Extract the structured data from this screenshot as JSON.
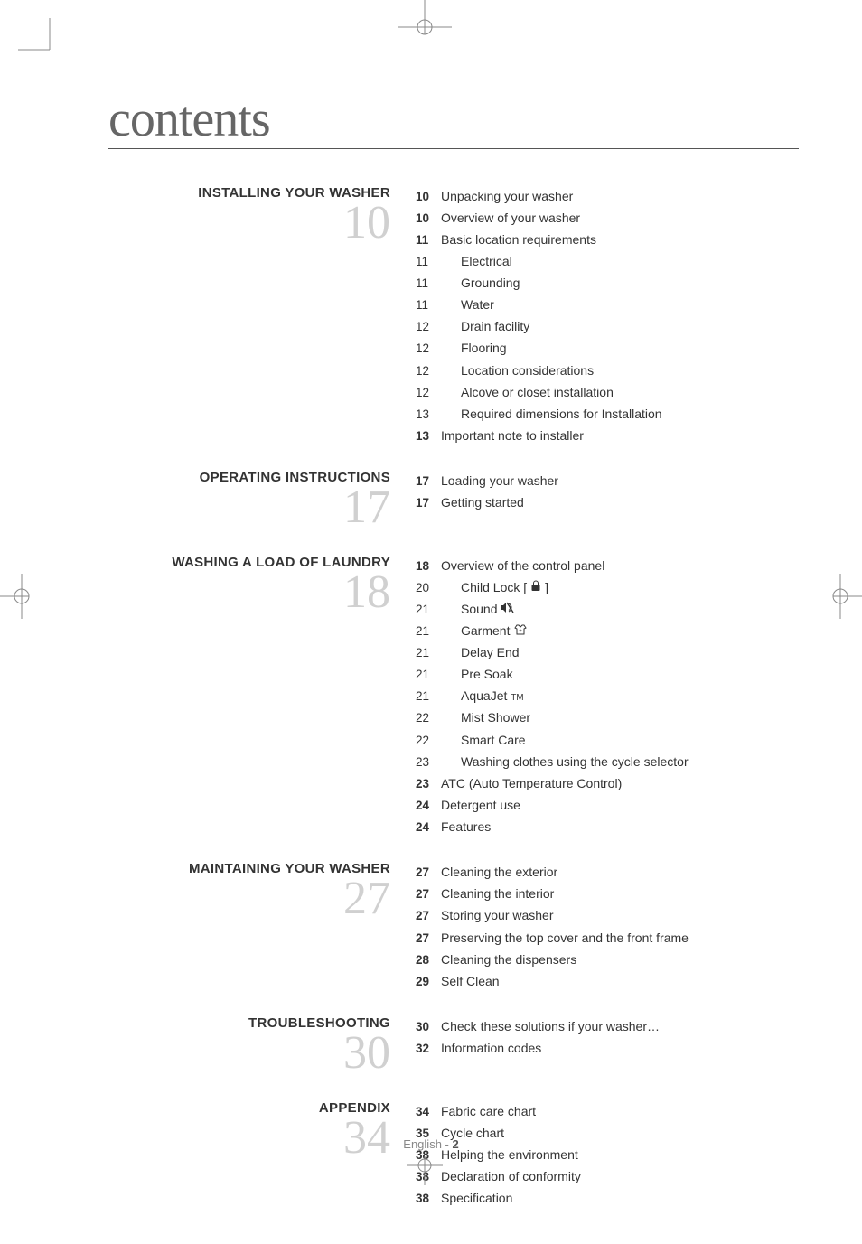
{
  "title": "contents",
  "footer": {
    "language": "English",
    "separator": " - ",
    "page": "2"
  },
  "crop_mark_color": "#888888",
  "big_number_color": "#d0d0d0",
  "icons": {
    "lock": "lock-icon",
    "sound": "sound-off-icon",
    "garment": "garment-icon"
  },
  "sections": [
    {
      "heading": "INSTALLING YOUR WASHER",
      "number": "10",
      "entries": [
        {
          "page": "10",
          "bold": true,
          "text": "Unpacking your washer",
          "indent": 0
        },
        {
          "page": "10",
          "bold": true,
          "text": "Overview of your washer",
          "indent": 0
        },
        {
          "page": "11",
          "bold": true,
          "text": "Basic location requirements",
          "indent": 0
        },
        {
          "page": "11",
          "bold": false,
          "text": "Electrical",
          "indent": 1
        },
        {
          "page": "11",
          "bold": false,
          "text": "Grounding",
          "indent": 1
        },
        {
          "page": "11",
          "bold": false,
          "text": "Water",
          "indent": 1
        },
        {
          "page": "12",
          "bold": false,
          "text": "Drain facility",
          "indent": 1
        },
        {
          "page": "12",
          "bold": false,
          "text": "Flooring",
          "indent": 1
        },
        {
          "page": "12",
          "bold": false,
          "text": "Location considerations",
          "indent": 1
        },
        {
          "page": "12",
          "bold": false,
          "text": "Alcove or closet installation",
          "indent": 1
        },
        {
          "page": "13",
          "bold": false,
          "text": "Required dimensions for Installation",
          "indent": 1
        },
        {
          "page": "13",
          "bold": true,
          "text": "Important note to installer",
          "indent": 0
        }
      ]
    },
    {
      "heading": "OPERATING INSTRUCTIONS",
      "number": "17",
      "entries": [
        {
          "page": "17",
          "bold": true,
          "text": "Loading your washer",
          "indent": 0
        },
        {
          "page": "17",
          "bold": true,
          "text": "Getting started",
          "indent": 0
        }
      ]
    },
    {
      "heading": "WASHING A LOAD OF LAUNDRY",
      "number": "18",
      "entries": [
        {
          "page": "18",
          "bold": true,
          "text": "Overview of the control panel",
          "indent": 0
        },
        {
          "page": "20",
          "bold": false,
          "text": "Child Lock [",
          "suffix": "]",
          "indent": 1,
          "icon": "lock"
        },
        {
          "page": "21",
          "bold": false,
          "text": "Sound ",
          "indent": 1,
          "icon": "sound"
        },
        {
          "page": "21",
          "bold": false,
          "text": "Garment ",
          "indent": 1,
          "icon": "garment"
        },
        {
          "page": "21",
          "bold": false,
          "text": "Delay End",
          "indent": 1
        },
        {
          "page": "21",
          "bold": false,
          "text": "Pre Soak",
          "indent": 1
        },
        {
          "page": "21",
          "bold": false,
          "text": "AquaJet",
          "indent": 1,
          "tm": true
        },
        {
          "page": "22",
          "bold": false,
          "text": "Mist Shower",
          "indent": 1
        },
        {
          "page": "22",
          "bold": false,
          "text": "Smart Care",
          "indent": 1
        },
        {
          "page": "23",
          "bold": false,
          "text": "Washing clothes using the cycle selector",
          "indent": 2
        },
        {
          "page": "23",
          "bold": true,
          "text": "ATC (Auto Temperature Control)",
          "indent": 0
        },
        {
          "page": "24",
          "bold": true,
          "text": "Detergent use",
          "indent": 0
        },
        {
          "page": "24",
          "bold": true,
          "text": "Features",
          "indent": 0
        }
      ]
    },
    {
      "heading": "MAINTAINING YOUR WASHER",
      "number": "27",
      "entries": [
        {
          "page": "27",
          "bold": true,
          "text": "Cleaning the exterior",
          "indent": 0
        },
        {
          "page": "27",
          "bold": true,
          "text": "Cleaning the interior",
          "indent": 0
        },
        {
          "page": "27",
          "bold": true,
          "text": "Storing your washer",
          "indent": 0
        },
        {
          "page": "27",
          "bold": true,
          "text": "Preserving the top cover and the front frame",
          "indent": 0
        },
        {
          "page": "28",
          "bold": true,
          "text": "Cleaning the dispensers",
          "indent": 0
        },
        {
          "page": "29",
          "bold": true,
          "text": "Self Clean",
          "indent": 0
        }
      ]
    },
    {
      "heading": "TROUBLESHOOTING",
      "number": "30",
      "entries": [
        {
          "page": "30",
          "bold": true,
          "text": "Check these solutions if your washer…",
          "indent": 0
        },
        {
          "page": "32",
          "bold": true,
          "text": "Information codes",
          "indent": 0
        }
      ]
    },
    {
      "heading": "APPENDIX",
      "number": "34",
      "entries": [
        {
          "page": "34",
          "bold": true,
          "text": "Fabric care chart",
          "indent": 0
        },
        {
          "page": "35",
          "bold": true,
          "text": "Cycle chart",
          "indent": 0
        },
        {
          "page": "38",
          "bold": true,
          "text": "Helping the environment",
          "indent": 0
        },
        {
          "page": "38",
          "bold": true,
          "text": "Declaration of conformity",
          "indent": 0
        },
        {
          "page": "38",
          "bold": true,
          "text": "Specification",
          "indent": 0
        }
      ]
    }
  ]
}
